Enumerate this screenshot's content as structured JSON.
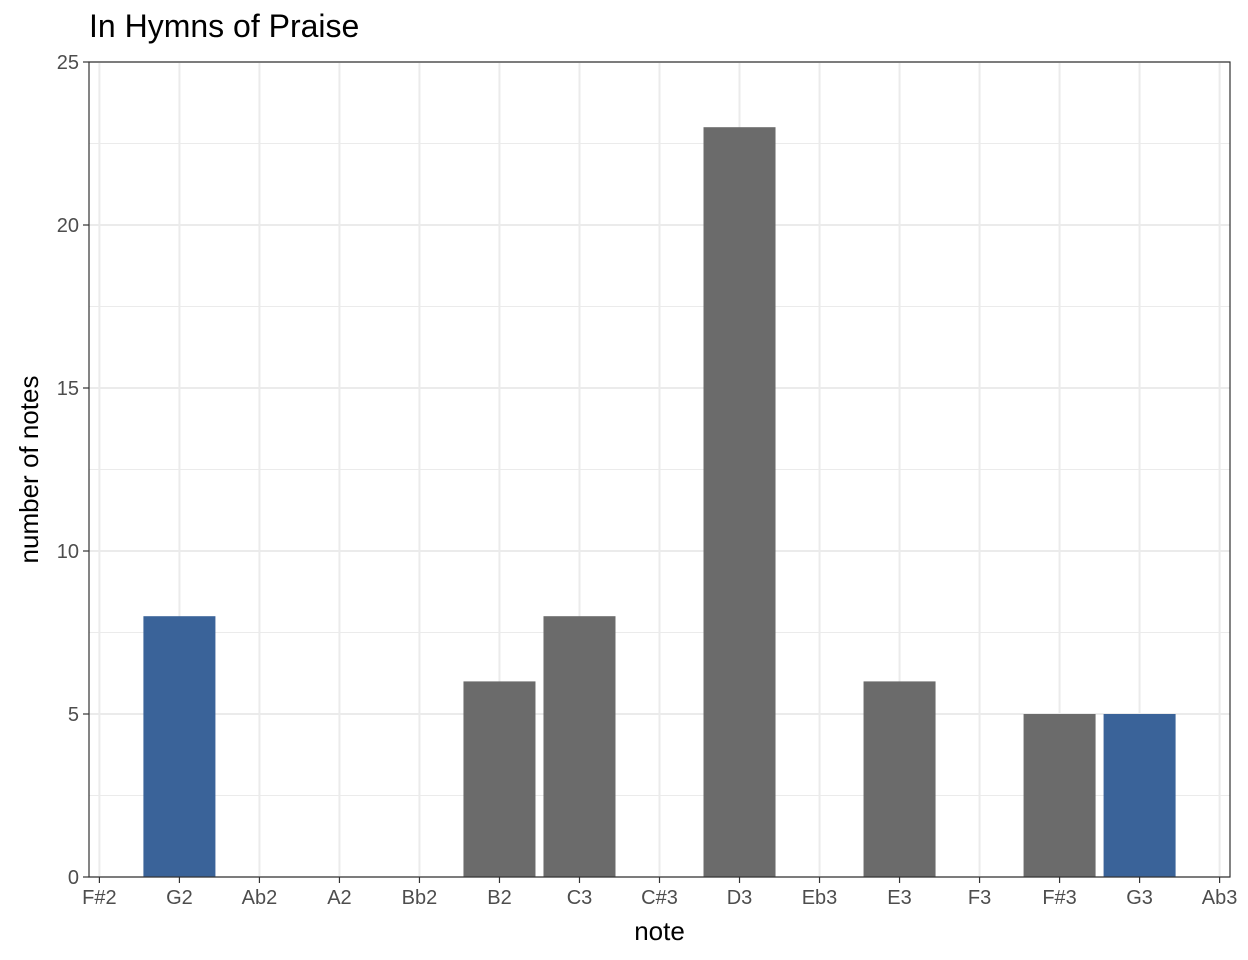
{
  "chart_data": {
    "type": "bar",
    "title": "In Hymns of Praise",
    "xlabel": "note",
    "ylabel": "number of notes",
    "categories": [
      "F#2",
      "G2",
      "Ab2",
      "A2",
      "Bb2",
      "B2",
      "C3",
      "C#3",
      "D3",
      "Eb3",
      "E3",
      "F3",
      "F#3",
      "G3",
      "Ab3"
    ],
    "values": [
      0,
      8,
      0,
      0,
      0,
      6,
      8,
      0,
      23,
      0,
      6,
      0,
      5,
      5,
      0
    ],
    "highlighted": [
      "G2",
      "G3"
    ],
    "ylim": [
      0,
      25
    ],
    "yticks": [
      0,
      5,
      10,
      15,
      20,
      25
    ],
    "grid": true,
    "colors": {
      "bar": "#6b6b6b",
      "highlight": "#3a6399",
      "grid": "#ebebeb",
      "panel_border": "#333333"
    }
  }
}
